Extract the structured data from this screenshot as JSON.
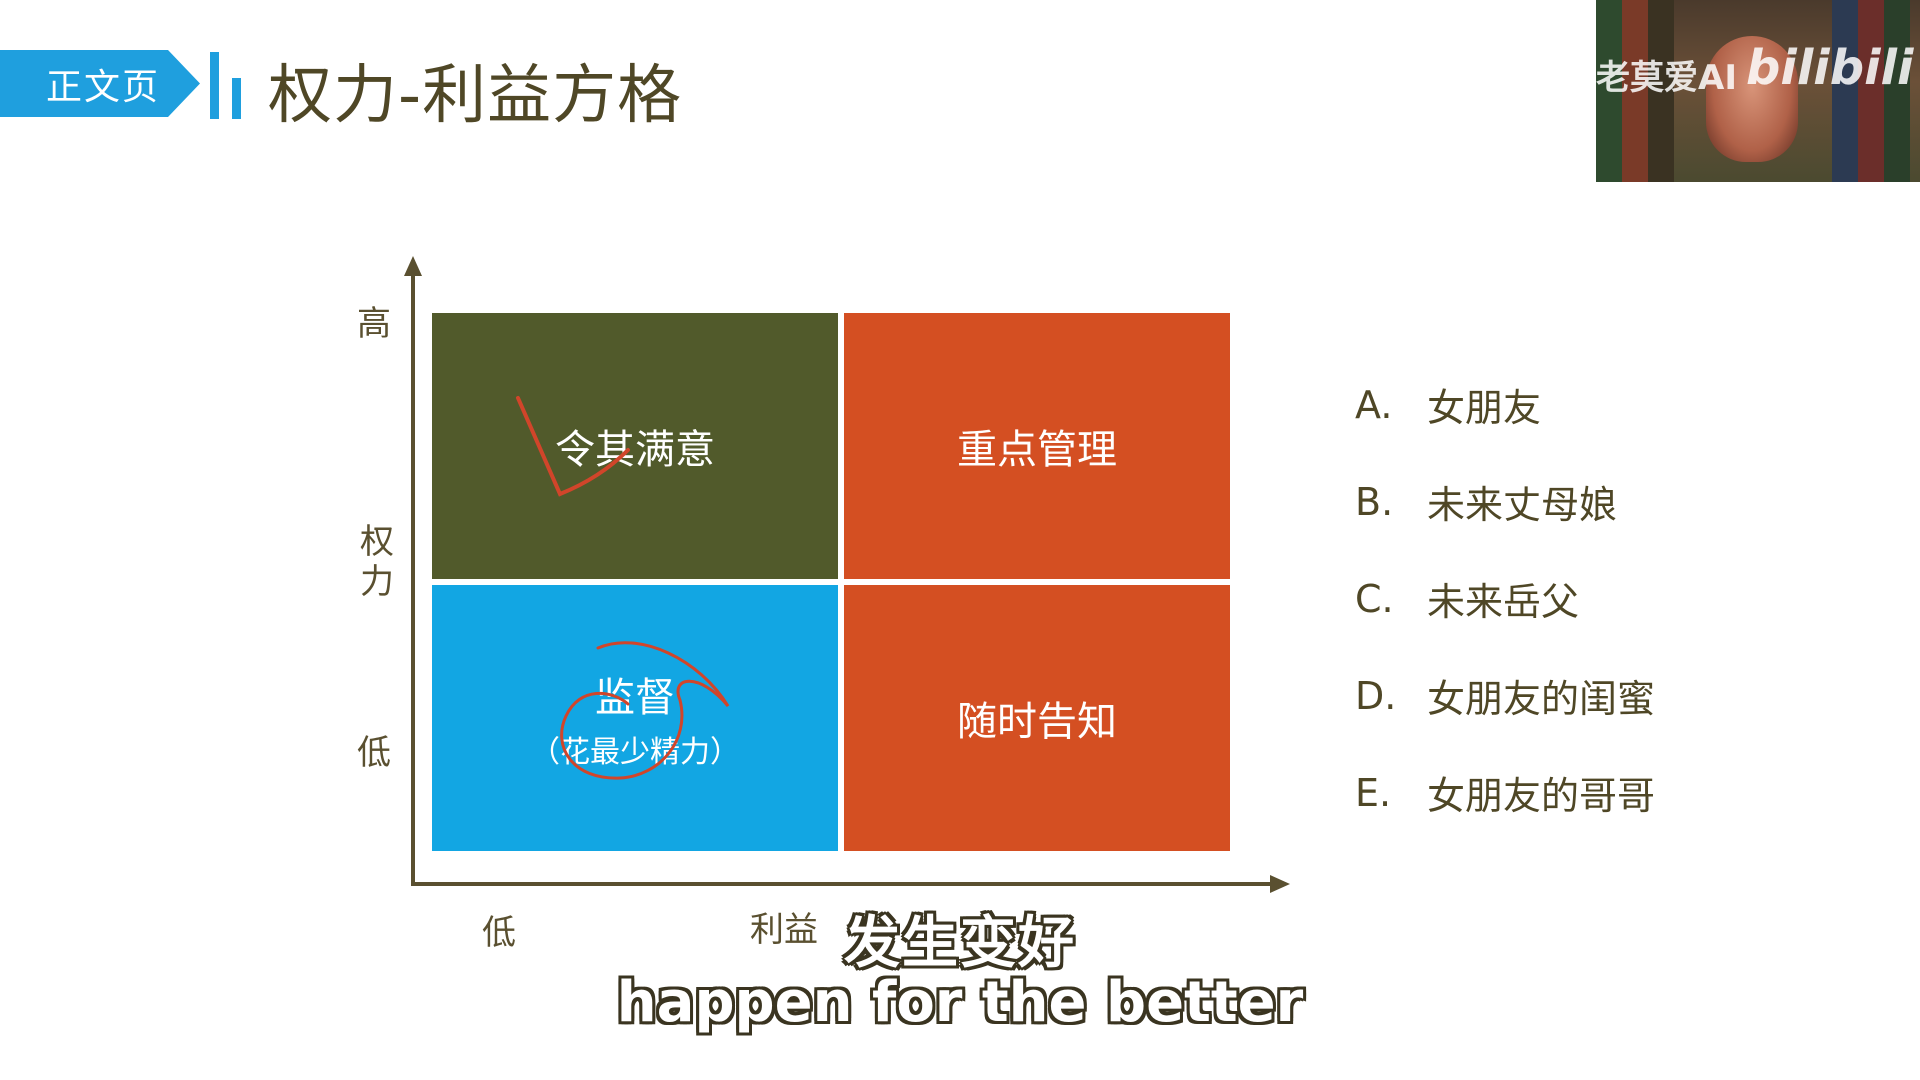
{
  "header": {
    "tag_label": "正文页",
    "title": "权力-利益方格"
  },
  "webcam": {
    "watermark_text": "老莫爱AI",
    "logo_text": "bilibili"
  },
  "chart_data": {
    "type": "table",
    "y_axis": {
      "title": "权力",
      "high_label": "高",
      "low_label": "低"
    },
    "x_axis": {
      "title": "利益",
      "low_label": "低"
    },
    "quadrants": {
      "top_left": {
        "label": "令其满意",
        "color": "#515a2b"
      },
      "top_right": {
        "label": "重点管理",
        "color": "#d44f22"
      },
      "bottom_left": {
        "label": "监督",
        "sublabel": "（花最少精力）",
        "color": "#12a6e3"
      },
      "bottom_right": {
        "label": "随时告知",
        "color": "#d44f22"
      }
    }
  },
  "options": [
    {
      "letter": "A.",
      "text": "女朋友"
    },
    {
      "letter": "B.",
      "text": "未来丈母娘"
    },
    {
      "letter": "C.",
      "text": "未来岳父"
    },
    {
      "letter": "D.",
      "text": "女朋友的闺蜜"
    },
    {
      "letter": "E.",
      "text": "女朋友的哥哥"
    }
  ],
  "subtitles": {
    "chinese": "发生变好",
    "english": "happen for the better"
  },
  "colors": {
    "accent": "#1f9fde",
    "axis": "#5a5030",
    "annotation": "#d1452a"
  }
}
